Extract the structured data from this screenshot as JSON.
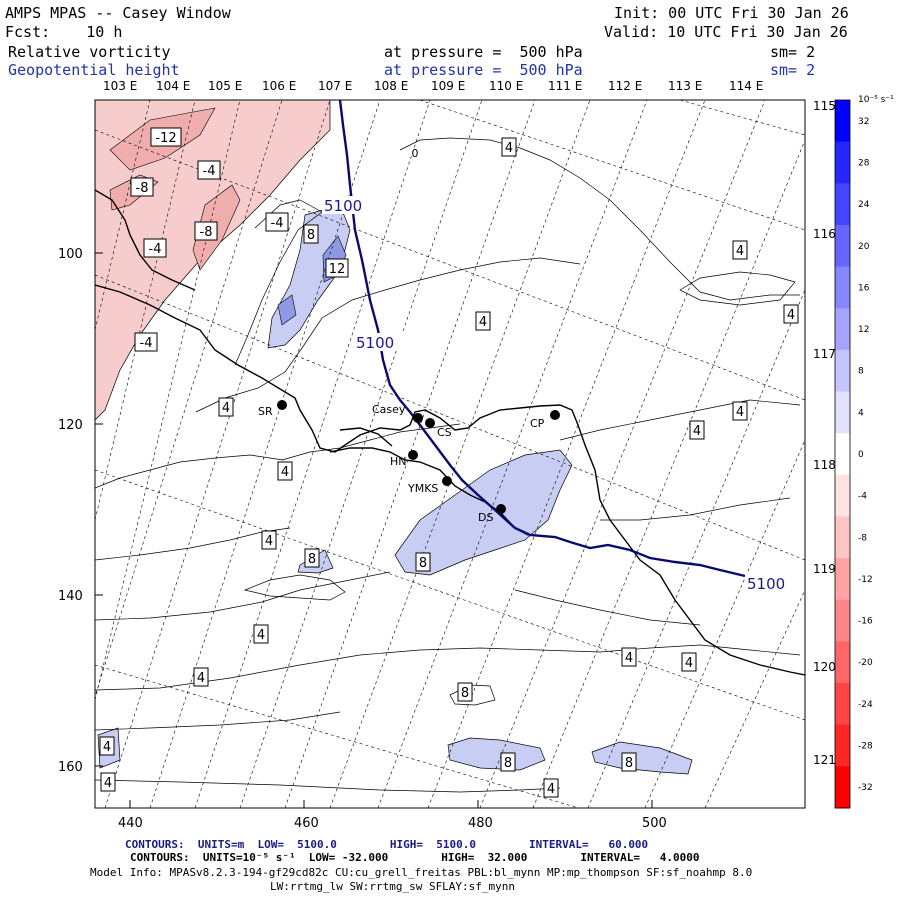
{
  "header": {
    "model": "AMPS MPAS -- Casey Window",
    "init": "Init: 00 UTC Fri 30 Jan 26",
    "fcst": "Fcst:    10 h",
    "valid": "Valid: 10 UTC Fri 30 Jan 26",
    "field1": "Relative vorticity",
    "field1_level": "at pressure =  500 hPa",
    "field1_sm": "sm= 2",
    "field2": "Geopotential height",
    "field2_level": "at pressure =  500 hPa",
    "field2_sm": "sm= 2"
  },
  "map": {
    "lon_top_labels": [
      "103 E",
      "104 E",
      "105 E",
      "106 E",
      "107 E",
      "108 E",
      "109 E",
      "110 E",
      "111 E",
      "112 E",
      "113 E",
      "114 E"
    ],
    "lon_right_labels": [
      "115 E",
      "116 E",
      "117 E",
      "118 E",
      "119 E",
      "120 E",
      "121 E"
    ],
    "x_ticks": [
      "440",
      "460",
      "480",
      "500"
    ],
    "y_ticks": [
      "100",
      "120",
      "140",
      "160"
    ],
    "stations": [
      {
        "name": "SR"
      },
      {
        "name": "Casey"
      },
      {
        "name": "CS"
      },
      {
        "name": "CP"
      },
      {
        "name": "HN"
      },
      {
        "name": "YMKS"
      },
      {
        "name": "DS"
      }
    ],
    "height_labels": [
      "5100",
      "5100",
      "5100"
    ],
    "vort_labels": [
      "-12",
      "-4",
      "-8",
      "-8",
      "-4",
      "-4",
      "-4",
      "8",
      "12",
      "0",
      "4",
      "4",
      "4",
      "4",
      "4",
      "4",
      "4",
      "4",
      "4",
      "4",
      "4",
      "4",
      "4",
      "4",
      "4",
      "8",
      "8",
      "8",
      "8",
      "8",
      "4"
    ],
    "colors": {
      "height_contour": "#0a0a6e",
      "pos_fill": "#c8cdf4",
      "neg_fill": "#f6cccc",
      "coast": "#000000"
    }
  },
  "colorbar": {
    "unit": "10⁻⁵ s⁻¹",
    "tick_labels": [
      "32",
      "28",
      "24",
      "20",
      "16",
      "12",
      "8",
      "4",
      "0",
      "-4",
      "-8",
      "-12",
      "-16",
      "-20",
      "-24",
      "-28",
      "-32"
    ],
    "colors": [
      "#0000ff",
      "#2626ff",
      "#4545ff",
      "#6666ff",
      "#8686ff",
      "#a4a4ff",
      "#c4c4ff",
      "#e2e2ff",
      "#ffffff",
      "#ffe2e2",
      "#ffc4c4",
      "#ffa4a4",
      "#ff8686",
      "#ff6666",
      "#ff4545",
      "#ff2626",
      "#ff0000"
    ]
  },
  "footer": {
    "line1": "CONTOURS:  UNITS=m  LOW=  5100.0        HIGH=  5100.0        INTERVAL=   60.000",
    "line2": "CONTOURS:  UNITS=10⁻⁵ s⁻¹  LOW= -32.000        HIGH=  32.000        INTERVAL=   4.0000",
    "line3": "Model Info: MPASv8.2.3-194-gf29cd82c CU:cu_grell_freitas PBL:bl_mynn MP:mp_thompson SF:sf_noahmp 8.0",
    "line4": "LW:rrtmg_lw SW:rrtmg_sw SFLAY:sf_mynn"
  }
}
